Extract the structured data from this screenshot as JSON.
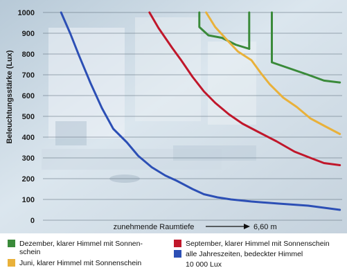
{
  "chart_data": {
    "type": "line",
    "ylabel": "Beleuchtungsstärke (Lux)",
    "xlabel": "zunehmende Raumtiefe",
    "xlabel_end": "6,60 m",
    "x_unit": "m",
    "x_range": [
      0,
      6.6
    ],
    "ylim": [
      0,
      1000
    ],
    "yticks": [
      "0",
      "100",
      "200",
      "300",
      "400",
      "500",
      "600",
      "700",
      "800",
      "900",
      "1000"
    ],
    "grid": true,
    "legend_position": "bottom",
    "series": [
      {
        "name": "Dezember, klarer Himmel mit Sonnenschein",
        "color": "#3a8a3a",
        "segments": [
          [
            [
              3.45,
              1000
            ],
            [
              3.45,
              930
            ],
            [
              3.65,
              890
            ],
            [
              3.95,
              878
            ],
            [
              4.25,
              845
            ],
            [
              4.55,
              825
            ]
          ],
          [
            [
              4.55,
              825
            ],
            [
              4.55,
              1000
            ]
          ],
          [
            [
              5.05,
              1000
            ],
            [
              5.05,
              760
            ],
            [
              5.45,
              730
            ],
            [
              5.85,
              700
            ],
            [
              6.2,
              672
            ],
            [
              6.55,
              663
            ]
          ]
        ]
      },
      {
        "name": "Juni, klarer Himmel mit Sonnenschein",
        "color": "#e9b13a",
        "segments": [
          [
            [
              3.6,
              1000
            ],
            [
              3.8,
              930
            ],
            [
              4.05,
              870
            ],
            [
              4.3,
              812
            ],
            [
              4.6,
              770
            ],
            [
              4.8,
              710
            ],
            [
              5.0,
              655
            ],
            [
              5.3,
              590
            ],
            [
              5.6,
              545
            ],
            [
              5.9,
              490
            ],
            [
              6.2,
              455
            ],
            [
              6.55,
              415
            ]
          ]
        ]
      },
      {
        "name": "September, klarer Himmel mit Sonnenschein",
        "color": "#c0172b",
        "segments": [
          [
            [
              2.35,
              1000
            ],
            [
              2.55,
              925
            ],
            [
              2.85,
              830
            ],
            [
              3.05,
              770
            ],
            [
              3.3,
              690
            ],
            [
              3.55,
              620
            ],
            [
              3.8,
              565
            ],
            [
              4.1,
              510
            ],
            [
              4.4,
              465
            ],
            [
              4.75,
              425
            ],
            [
              5.15,
              380
            ],
            [
              5.55,
              330
            ],
            [
              5.9,
              300
            ],
            [
              6.2,
              275
            ],
            [
              6.55,
              265
            ]
          ]
        ]
      },
      {
        "name": "alle Jahreszeiten, bedeckter Himmel 10 000 Lux",
        "color": "#2c4fb5",
        "segments": [
          [
            [
              0.4,
              1000
            ],
            [
              0.6,
              900
            ],
            [
              0.8,
              790
            ],
            [
              1.05,
              660
            ],
            [
              1.3,
              540
            ],
            [
              1.55,
              440
            ],
            [
              1.85,
              375
            ],
            [
              2.1,
              310
            ],
            [
              2.4,
              255
            ],
            [
              2.7,
              215
            ],
            [
              2.95,
              190
            ],
            [
              3.3,
              150
            ],
            [
              3.55,
              125
            ],
            [
              3.85,
              110
            ],
            [
              4.15,
              100
            ],
            [
              4.6,
              90
            ],
            [
              5.2,
              80
            ],
            [
              5.85,
              70
            ],
            [
              6.55,
              50
            ]
          ]
        ]
      }
    ]
  },
  "legend": {
    "items": [
      {
        "color": "#3a8a3a",
        "line1": "Dezember, klarer Himmel mit Sonnen-",
        "line2": "schein"
      },
      {
        "color": "#e9b13a",
        "line1": "Juni, klarer Himmel mit Sonnenschein",
        "line2": ""
      },
      {
        "color": "#c0172b",
        "line1": "September, klarer Himmel mit Sonnenschein",
        "line2": ""
      },
      {
        "color": "#2c4fb5",
        "line1": "alle Jahreszeiten, bedeckter Himmel",
        "line2": ""
      }
    ],
    "note": "10 000 Lux"
  }
}
